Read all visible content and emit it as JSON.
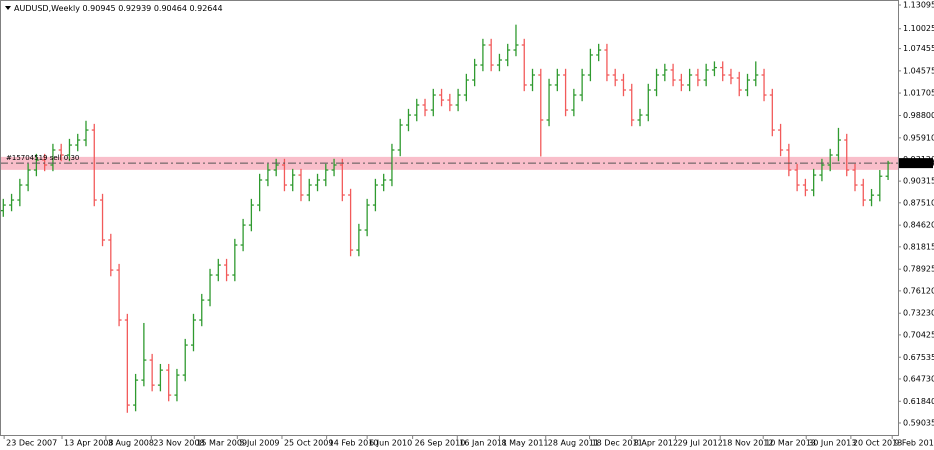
{
  "chart_data": {
    "type": "ohlc",
    "title": "AUDUSD,Weekly",
    "up_color": "#2f9a2f",
    "down_color": "#f25a5a",
    "grid": false,
    "ylim": [
      0.5748,
      1.1374
    ],
    "xlim": [
      -0.4,
      108.2
    ],
    "yticks": [
      1.13095,
      1.10025,
      1.07455,
      1.04575,
      1.01705,
      {
        "value": 0.988,
        "label": "0.98800"
      },
      {
        "value": 0.9591,
        "label": "0.95910"
      },
      {
        "value": 0.9312,
        "label": "0.93120"
      },
      0.90315,
      {
        "value": 0.8751,
        "label": "0.87510"
      },
      {
        "value": 0.8462,
        "label": "0.84620"
      },
      0.81815,
      0.78925,
      {
        "value": 0.7612,
        "label": "0.76120"
      },
      {
        "value": 0.7323,
        "label": "0.73230"
      },
      0.70425,
      0.67535,
      {
        "value": 0.6473,
        "label": "0.64730"
      },
      {
        "value": 0.6184,
        "label": "0.61840"
      },
      0.59035
    ],
    "xticks": [
      {
        "value": 0.1,
        "label": "23 Dec 2007"
      },
      {
        "value": 7.1,
        "label": "13 Apr 2008"
      },
      {
        "value": 12.4,
        "label": "3 Aug 2008"
      },
      {
        "value": 17.9,
        "label": "23 Nov 2008"
      },
      {
        "value": 23.1,
        "label": "15 Mar 2009"
      },
      {
        "value": 28.3,
        "label": "5 Jul 2009"
      },
      {
        "value": 33.7,
        "label": "25 Oct 2009"
      },
      {
        "value": 39.1,
        "label": "14 Feb 2010"
      },
      {
        "value": 44.0,
        "label": "6 Jun 2010"
      },
      {
        "value": 49.5,
        "label": "26 Sep 2010"
      },
      {
        "value": 54.9,
        "label": "16 Jan 2011"
      },
      {
        "value": 60.0,
        "label": "8 May 2011"
      },
      {
        "value": 65.6,
        "label": "28 Aug 2011"
      },
      {
        "value": 70.9,
        "label": "18 Dec 2011"
      },
      {
        "value": 76.0,
        "label": "8 Apr 2012"
      },
      {
        "value": 81.3,
        "label": "29 Jul 2012"
      },
      {
        "value": 86.7,
        "label": "18 Nov 2012"
      },
      {
        "value": 91.9,
        "label": "10 Mar 2013"
      },
      {
        "value": 97.1,
        "label": "30 Jun 2013"
      },
      {
        "value": 102.5,
        "label": "20 Oct 2013"
      },
      {
        "value": 107.5,
        "label": "9 Feb 2014"
      }
    ],
    "order": {
      "label": "#15704519 sell 0.30",
      "price": 0.9265
    },
    "zone": [
      0.9177,
      0.9345
    ],
    "open": [
      0.865,
      0.8722,
      0.8787,
      0.8981,
      0.9175,
      0.9304,
      0.924,
      0.9434,
      0.9369,
      0.9498,
      0.9563,
      0.9692,
      0.8787,
      0.827,
      0.7881,
      0.7235,
      0.6135,
      0.6458,
      0.6717,
      0.6393,
      0.6587,
      0.6264,
      0.6523,
      0.6911,
      0.7235,
      0.7493,
      0.7817,
      0.7946,
      0.7817,
      0.8205,
      0.8463,
      0.8722,
      0.9046,
      0.9175,
      0.924,
      0.8981,
      0.911,
      0.8852,
      0.8981,
      0.9046,
      0.9175,
      0.924,
      0.8852,
      0.814,
      0.8399,
      0.8722,
      0.8981,
      0.9046,
      0.9434,
      0.9757,
      0.9886,
      1.0016,
      0.9951,
      1.0145,
      1.008,
      1.0016,
      1.0145,
      1.0339,
      1.0533,
      1.0792,
      1.0533,
      1.0598,
      1.0727,
      1.0792,
      1.0275,
      1.0404,
      0.9822,
      1.0275,
      1.0404,
      0.9951,
      1.0145,
      1.0404,
      1.0663,
      1.0727,
      1.0404,
      1.0339,
      1.021,
      0.9822,
      0.9886,
      1.021,
      1.0404,
      1.0469,
      1.0339,
      1.0275,
      1.0404,
      1.0339,
      1.0469,
      1.05,
      1.0404,
      1.0365,
      1.021,
      1.0339,
      1.0404,
      1.0145,
      0.9692,
      0.9434,
      0.9175,
      0.8981,
      0.8916,
      0.911,
      0.924,
      0.9369,
      0.9563,
      0.9175,
      0.8981,
      0.8787,
      0.885,
      0.90945
    ],
    "high": [
      0.8802,
      0.8867,
      0.9061,
      0.9255,
      0.9384,
      0.9384,
      0.9514,
      0.9514,
      0.9578,
      0.9643,
      0.9812,
      0.9772,
      0.8867,
      0.835,
      0.7961,
      0.7315,
      0.6538,
      0.7197,
      0.6797,
      0.6667,
      0.6667,
      0.6603,
      0.6991,
      0.7315,
      0.7573,
      0.7897,
      0.8026,
      0.8026,
      0.8285,
      0.8543,
      0.8802,
      0.9126,
      0.9255,
      0.932,
      0.932,
      0.919,
      0.919,
      0.9061,
      0.9126,
      0.9255,
      0.932,
      0.932,
      0.8932,
      0.8479,
      0.8802,
      0.9061,
      0.9126,
      0.9514,
      0.9837,
      0.9966,
      1.0096,
      1.0096,
      1.0225,
      1.0225,
      1.016,
      1.0225,
      1.0419,
      1.0613,
      1.0872,
      1.0872,
      1.0678,
      1.0807,
      1.1055,
      1.0872,
      1.0484,
      1.0484,
      1.0355,
      1.0484,
      1.0484,
      1.0225,
      1.0484,
      1.0743,
      1.0807,
      1.0807,
      1.0484,
      1.0419,
      1.029,
      0.9966,
      1.029,
      1.0484,
      1.0549,
      1.0549,
      1.0419,
      1.0484,
      1.0484,
      1.0549,
      1.058,
      1.058,
      1.0484,
      1.0445,
      1.0419,
      1.058,
      1.0484,
      1.0225,
      0.9772,
      0.9514,
      0.9255,
      0.9061,
      0.919,
      0.932,
      0.9449,
      0.972,
      0.9643,
      0.9255,
      0.9061,
      0.893,
      0.9175,
      0.92939
    ],
    "low": [
      0.857,
      0.8642,
      0.8707,
      0.8901,
      0.9095,
      0.916,
      0.916,
      0.9289,
      0.9289,
      0.9418,
      0.9483,
      0.8707,
      0.819,
      0.7801,
      0.7155,
      0.6035,
      0.6055,
      0.6378,
      0.6313,
      0.6313,
      0.6184,
      0.6184,
      0.6443,
      0.6831,
      0.7155,
      0.7413,
      0.7737,
      0.7737,
      0.7737,
      0.8125,
      0.8383,
      0.8642,
      0.8966,
      0.9095,
      0.8901,
      0.8901,
      0.8772,
      0.8772,
      0.8901,
      0.8966,
      0.9095,
      0.8772,
      0.806,
      0.806,
      0.8319,
      0.8642,
      0.8901,
      0.8966,
      0.9354,
      0.9677,
      0.9806,
      0.9871,
      0.9871,
      1.0,
      0.9936,
      0.9936,
      1.0065,
      1.0259,
      1.0453,
      1.0453,
      1.0453,
      1.0518,
      1.0647,
      1.0195,
      1.0195,
      0.935,
      0.9742,
      1.0195,
      0.9871,
      0.9871,
      1.0065,
      1.0324,
      1.0583,
      1.0324,
      1.0259,
      1.013,
      0.9742,
      0.9742,
      0.9806,
      1.013,
      1.0324,
      1.0259,
      1.0195,
      1.0195,
      1.0259,
      1.0259,
      1.0389,
      1.0324,
      1.0285,
      1.013,
      1.013,
      1.0259,
      1.0065,
      0.9612,
      0.9354,
      0.9095,
      0.8901,
      0.8836,
      0.8836,
      0.903,
      0.916,
      0.9289,
      0.9095,
      0.8901,
      0.8707,
      0.8707,
      0.877,
      0.90464
    ],
    "close": [
      0.8722,
      0.8787,
      0.8981,
      0.9175,
      0.9304,
      0.924,
      0.9434,
      0.9369,
      0.9498,
      0.9563,
      0.9692,
      0.8787,
      0.827,
      0.7881,
      0.7235,
      0.6135,
      0.6458,
      0.6717,
      0.6393,
      0.6587,
      0.6264,
      0.6523,
      0.6911,
      0.7235,
      0.7493,
      0.7817,
      0.7946,
      0.7817,
      0.8205,
      0.8463,
      0.8722,
      0.9046,
      0.9175,
      0.924,
      0.8981,
      0.911,
      0.8852,
      0.8981,
      0.9046,
      0.9175,
      0.924,
      0.8852,
      0.814,
      0.8399,
      0.8722,
      0.8981,
      0.9046,
      0.9434,
      0.9757,
      0.9886,
      1.0016,
      0.9951,
      1.0145,
      1.008,
      1.0016,
      1.0145,
      1.0339,
      1.0533,
      1.0792,
      1.0533,
      1.0598,
      1.0727,
      1.0792,
      1.0275,
      1.0404,
      0.9822,
      1.0275,
      1.0404,
      0.9951,
      1.0145,
      1.0404,
      1.0663,
      1.0727,
      1.0404,
      1.0339,
      1.021,
      0.9822,
      0.9886,
      1.021,
      1.0404,
      1.0469,
      1.0339,
      1.0275,
      1.0404,
      1.0339,
      1.0469,
      1.05,
      1.0404,
      1.0365,
      1.021,
      1.0339,
      1.0404,
      1.0145,
      0.9692,
      0.9434,
      0.9175,
      0.8981,
      0.8916,
      0.911,
      0.924,
      0.9369,
      0.9563,
      0.9175,
      0.8981,
      0.8787,
      0.885,
      0.90945,
      0.92644
    ]
  }
}
